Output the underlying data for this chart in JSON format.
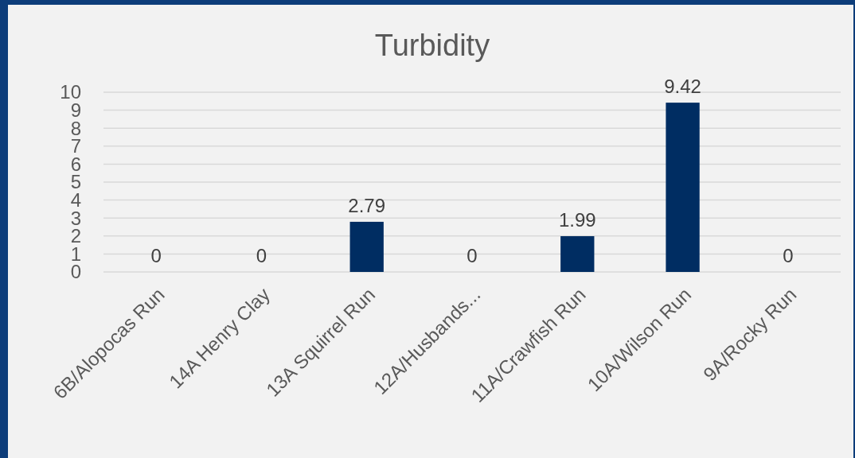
{
  "chart_data": {
    "type": "bar",
    "title": "Turbidity",
    "categories": [
      "6B/Alopocas Run",
      "14A Henry Clay",
      "13A Squirrel Run",
      "12A/Husbands...",
      "11A/Crawfish Run",
      "10A/Wilson Run",
      "9A/Rocky Run"
    ],
    "values": [
      0,
      0,
      2.79,
      0,
      1.99,
      9.42,
      0
    ],
    "color": "#002d62",
    "ylim": [
      0,
      10
    ],
    "yticks": [
      0,
      1,
      2,
      3,
      4,
      5,
      6,
      7,
      8,
      9,
      10
    ],
    "grid": "y",
    "data_labels": true
  }
}
